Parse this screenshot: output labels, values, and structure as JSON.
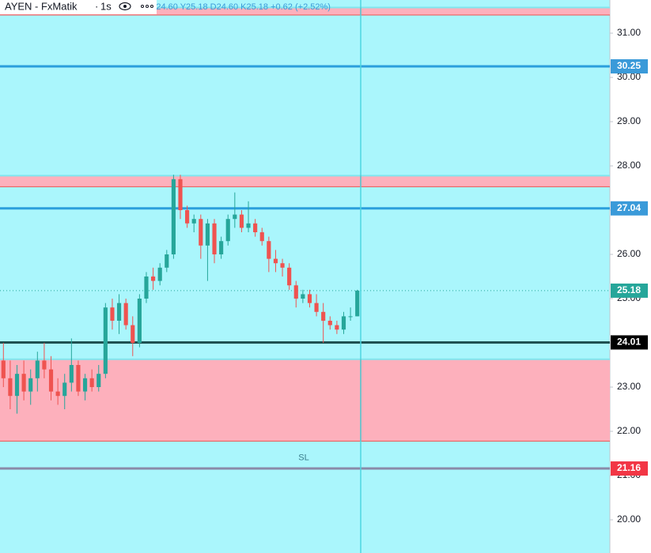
{
  "chart_data": {
    "type": "candlestick",
    "symbol": "AYEN - FxMatik",
    "interval": "1s",
    "ohlc_text": "A24.60 Y25.18 D24.60 K25.18 +0.62 (+2.52%)",
    "open": [
      23.6,
      23.2,
      22.8,
      23.3,
      22.9,
      23.2,
      23.6,
      23.4,
      22.9,
      22.8,
      23.1,
      23.5,
      22.9,
      23.2,
      23.0,
      23.3,
      24.8,
      24.5,
      24.9,
      24.4,
      24.0,
      25.0,
      25.5,
      25.4,
      25.7,
      26.0,
      27.7,
      27.0,
      26.7,
      26.8,
      26.2,
      26.7,
      26.0,
      26.3,
      26.8,
      26.9,
      26.6,
      26.7,
      26.5,
      26.3,
      25.9,
      25.8,
      25.7,
      25.3,
      25.0,
      25.1,
      24.9,
      24.7,
      24.5,
      24.4,
      24.3,
      24.6,
      24.6
    ],
    "high": [
      24.0,
      23.6,
      23.5,
      23.6,
      23.4,
      23.8,
      24.0,
      23.7,
      23.2,
      23.3,
      24.1,
      23.6,
      23.3,
      23.4,
      23.5,
      24.9,
      25.0,
      25.1,
      25.0,
      24.6,
      25.1,
      25.6,
      25.7,
      25.8,
      26.1,
      27.8,
      27.8,
      27.1,
      26.9,
      26.9,
      26.8,
      26.8,
      26.4,
      26.9,
      27.4,
      27.0,
      27.2,
      26.8,
      26.6,
      26.4,
      26.1,
      25.9,
      25.8,
      25.4,
      25.2,
      25.2,
      25.1,
      24.9,
      24.6,
      24.5,
      24.7,
      24.8,
      25.2
    ],
    "low": [
      23.0,
      22.5,
      22.4,
      22.7,
      22.6,
      22.9,
      23.2,
      22.7,
      22.6,
      22.5,
      22.9,
      22.8,
      22.7,
      22.9,
      22.9,
      23.2,
      24.3,
      24.2,
      24.3,
      23.7,
      23.9,
      24.9,
      25.2,
      25.3,
      25.6,
      25.9,
      26.8,
      26.6,
      26.5,
      25.9,
      25.4,
      25.8,
      25.9,
      26.2,
      26.6,
      26.5,
      26.5,
      26.4,
      26.2,
      25.6,
      25.6,
      25.5,
      25.2,
      24.8,
      24.9,
      24.8,
      24.6,
      24.0,
      24.3,
      24.2,
      24.2,
      24.5,
      24.6
    ],
    "close": [
      23.2,
      22.8,
      23.3,
      22.9,
      23.2,
      23.6,
      23.4,
      22.9,
      22.8,
      23.1,
      23.5,
      22.9,
      23.2,
      23.0,
      23.3,
      24.8,
      24.5,
      24.9,
      24.4,
      24.0,
      25.0,
      25.5,
      25.4,
      25.7,
      26.0,
      27.7,
      27.0,
      26.7,
      26.8,
      26.2,
      26.7,
      26.0,
      26.3,
      26.8,
      26.9,
      26.6,
      26.7,
      26.5,
      26.3,
      25.9,
      25.8,
      25.7,
      25.3,
      25.0,
      25.1,
      24.9,
      24.7,
      24.5,
      24.4,
      24.3,
      24.6,
      24.6,
      25.18
    ],
    "up_color": "#26a69a",
    "down_color": "#ef5350",
    "ylim": [
      19.25,
      31.75
    ],
    "yticks": [
      {
        "value": 31,
        "label": "31.00"
      },
      {
        "value": 30,
        "label": "30.00"
      },
      {
        "value": 29,
        "label": "29.00"
      },
      {
        "value": 28,
        "label": "28.00"
      },
      {
        "value": 27,
        "label": "27.00"
      },
      {
        "value": 26,
        "label": "26.00"
      },
      {
        "value": 25,
        "label": "25.00"
      },
      {
        "value": 24,
        "label": "24.00"
      },
      {
        "value": 23,
        "label": "23.00"
      },
      {
        "value": 22,
        "label": "22.00"
      },
      {
        "value": 21,
        "label": "21.00"
      },
      {
        "value": 20,
        "label": "20.00"
      }
    ],
    "levels": [
      {
        "value": 30.25,
        "color": "#2b9fdc",
        "label_color": "#3a9ad9",
        "style": "solid"
      },
      {
        "value": 27.04,
        "color": "#2b9fdc",
        "label_color": "#3a9ad9",
        "style": "solid"
      },
      {
        "value": 25.18,
        "color": "#26a69a",
        "label_color": "#26a69a",
        "style": "dotted"
      },
      {
        "value": 24.01,
        "color": "#1f5151",
        "label_color": "#000000",
        "style": "solid"
      },
      {
        "value": 21.16,
        "color": "#8a8aa8",
        "label_color": "#f23645",
        "style": "solid"
      }
    ],
    "zones": [
      {
        "from": 31.41,
        "to": 31.58
      },
      {
        "from": 27.53,
        "to": 27.78
      },
      {
        "from": 21.78,
        "to": 23.63
      }
    ],
    "zone_color": "#fdb0bc",
    "zone_border": "#ef5350",
    "annotation": {
      "text": "SL",
      "value": 21.4
    }
  }
}
